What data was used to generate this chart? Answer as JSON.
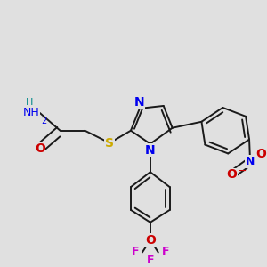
{
  "bg_color": "#e0e0e0",
  "bond_color": "#1a1a1a",
  "bond_width": 1.4,
  "dbo": 0.012,
  "colors": {
    "N": "#0000ee",
    "O": "#cc0000",
    "S": "#ccaa00",
    "F": "#cc00cc",
    "H": "#008888"
  },
  "fig_size": [
    3.0,
    3.0
  ],
  "dpi": 100
}
